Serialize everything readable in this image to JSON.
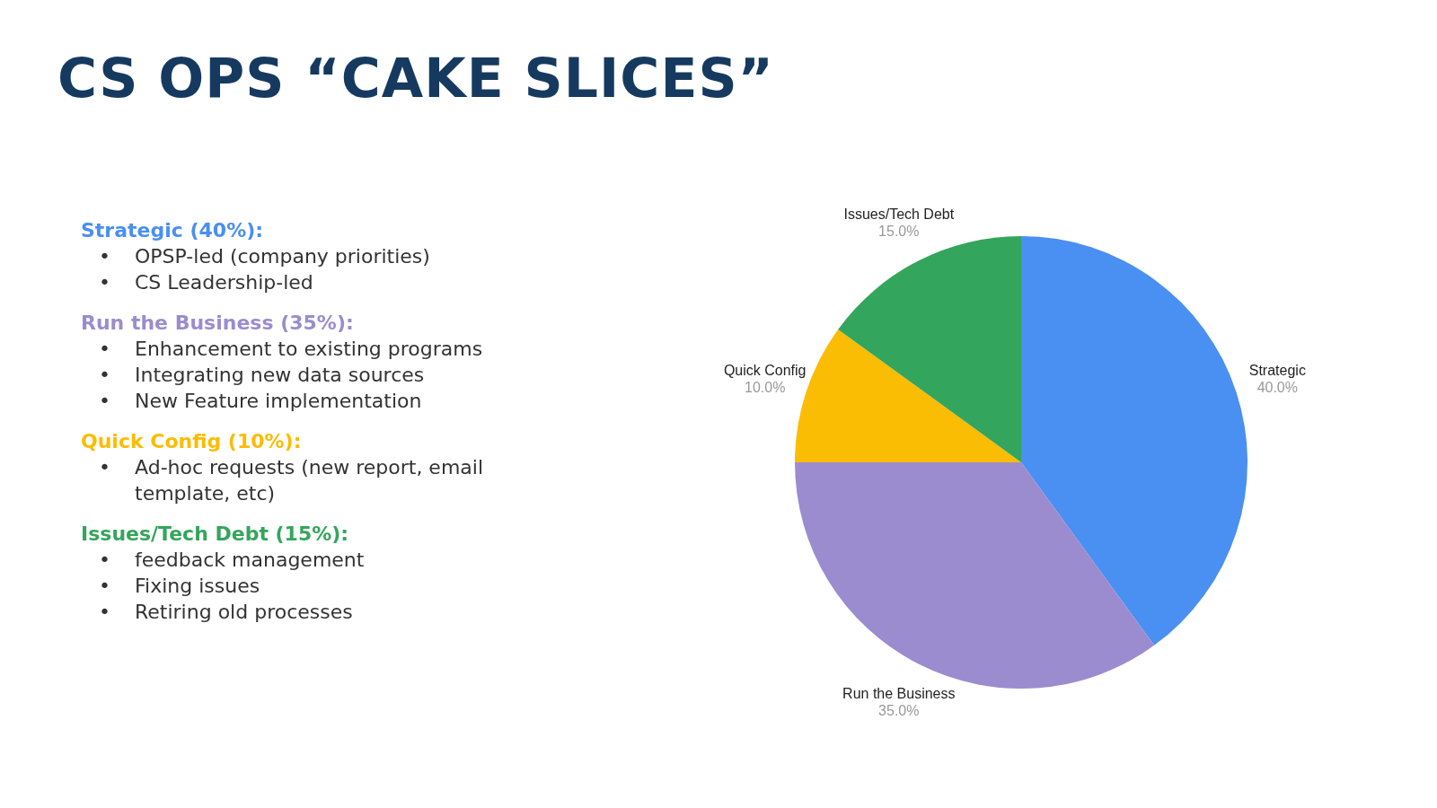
{
  "chart_data": {
    "type": "pie",
    "title": "CS OPS “CAKE SLICES”",
    "categories": [
      "Strategic",
      "Run the Business",
      "Quick Config",
      "Issues/Tech Debt"
    ],
    "values": [
      40,
      35,
      10,
      15
    ],
    "value_labels": [
      "40.0%",
      "35.0%",
      "10.0%",
      "15.0%"
    ],
    "colors": [
      "#4a8ff2",
      "#9b8ccf",
      "#fbbc04",
      "#34a55c"
    ],
    "legend": false,
    "annotations": [
      "Strategic (40%):",
      "•\tOPSP-led (company priorities)",
      "•\tCS Leadership-led",
      "Run the Business (35%):",
      "•\tEnhancement to existing programs",
      "•\tIntegrating new data sources",
      "•\tNew Feature implementation",
      "Quick Config (10%):",
      "•\tAd-hoc requests (new report, email template, etc)",
      "Issues/Tech Debt (15%):",
      "•\tfeedback management",
      "•\tFixing issues",
      "•\tRetiring old processes"
    ]
  }
}
